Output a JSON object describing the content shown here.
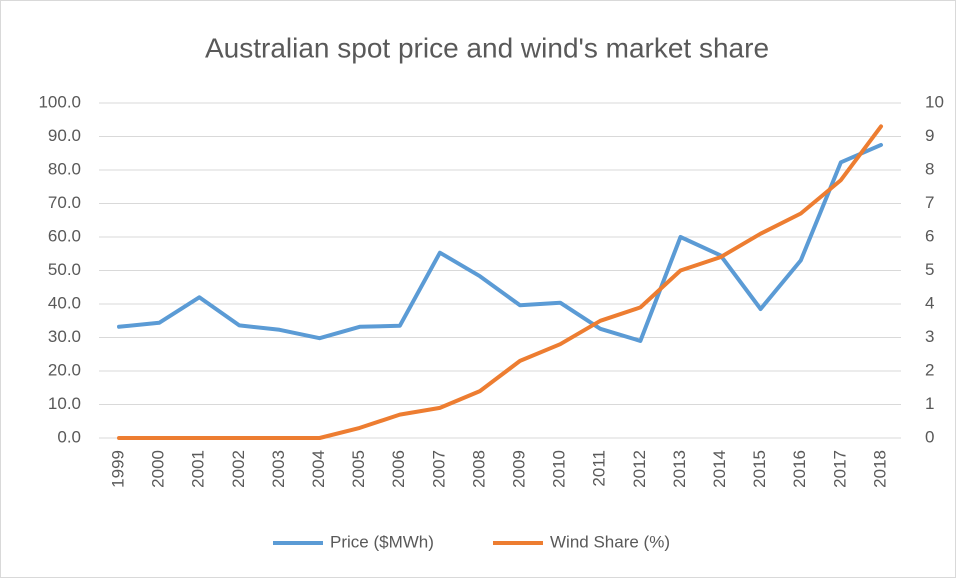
{
  "chart_data": {
    "type": "line",
    "title": "Australian spot price and wind's market share",
    "categories": [
      "1999",
      "2000",
      "2001",
      "2002",
      "2003",
      "2004",
      "2005",
      "2006",
      "2007",
      "2008",
      "2009",
      "2010",
      "2011",
      "2012",
      "2013",
      "2014",
      "2015",
      "2016",
      "2017",
      "2018"
    ],
    "series": [
      {
        "name": "Price ($MWh)",
        "color": "#5b9bd5",
        "values": [
          33.2,
          34.4,
          42.0,
          33.6,
          32.3,
          29.8,
          33.2,
          33.5,
          55.3,
          48.3,
          39.6,
          40.4,
          32.6,
          29.0,
          60.0,
          54.5,
          38.5,
          53.0,
          82.3,
          87.5
        ]
      },
      {
        "name": "Wind Share (%)",
        "color": "#ed7d31",
        "axis": "y2",
        "values": [
          0,
          0,
          0,
          0,
          0,
          0,
          0.3,
          0.7,
          0.9,
          1.4,
          2.3,
          2.8,
          3.5,
          3.9,
          5.0,
          5.4,
          6.1,
          6.7,
          7.7,
          9.3
        ]
      }
    ],
    "ylim": [
      0,
      100
    ],
    "yticks": [
      {
        "value": 0,
        "label": "0.0"
      },
      {
        "value": 10,
        "label": "10.0"
      },
      {
        "value": 20,
        "label": "20.0"
      },
      {
        "value": 30,
        "label": "30.0"
      },
      {
        "value": 40,
        "label": "40.0"
      },
      {
        "value": 50,
        "label": "50.0"
      },
      {
        "value": 60,
        "label": "60.0"
      },
      {
        "value": 70,
        "label": "70.0"
      },
      {
        "value": 80,
        "label": "80.0"
      },
      {
        "value": 90,
        "label": "90.0"
      },
      {
        "value": 100,
        "label": "100.0"
      }
    ],
    "y2lim": [
      0,
      10
    ],
    "y2ticks": [
      0,
      1,
      2,
      3,
      4,
      5,
      6,
      7,
      8,
      9,
      10
    ],
    "grid": true,
    "legend": "bottom"
  }
}
